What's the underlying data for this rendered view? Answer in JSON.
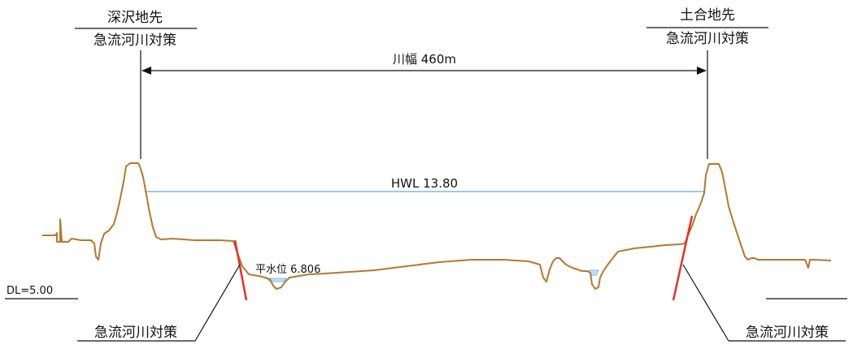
{
  "left_site": {
    "name": "深沢地先",
    "subtitle": "急流河川対策"
  },
  "right_site": {
    "name": "土合地先",
    "subtitle": "急流河川対策"
  },
  "width_label": "川幅 460m",
  "hwl_label": "HWL 13.80",
  "normal_water_label": "平水位 6.806",
  "datum_label": "DL=5.00",
  "callout_left": "急流河川対策",
  "callout_right": "急流河川対策",
  "colors": {
    "ground": "#b5782e",
    "hwl": "#6aa6e8",
    "countermeasure": "#e8302a",
    "water": "#bfe0f5",
    "line": "#111111"
  }
}
